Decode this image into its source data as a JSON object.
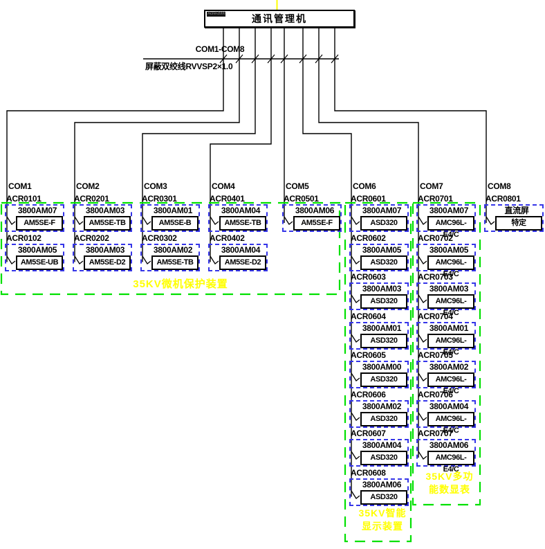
{
  "controller": {
    "tag": "Acrel-2000",
    "title": "通讯管理机"
  },
  "bus": {
    "ports_label": "COM1-COM8",
    "cable_label": "屏蔽双绞线RVVSP2×1.0"
  },
  "columns": [
    {
      "com": "COM1",
      "devices": [
        {
          "address": "ACR0101",
          "code": "3800AM07",
          "model": "AM5SE-F"
        },
        {
          "address": "ACR0102",
          "code": "3800AM05",
          "model": "AM5SE-UB"
        }
      ]
    },
    {
      "com": "COM2",
      "devices": [
        {
          "address": "ACR0201",
          "code": "3800AM03",
          "model": "AM5SE-TB"
        },
        {
          "address": "ACR0202",
          "code": "3800AM03",
          "model": "AM5SE-D2"
        }
      ]
    },
    {
      "com": "COM3",
      "devices": [
        {
          "address": "ACR0301",
          "code": "3800AM01",
          "model": "AM5SE-B"
        },
        {
          "address": "ACR0302",
          "code": "3800AM02",
          "model": "AM5SE-TB"
        }
      ]
    },
    {
      "com": "COM4",
      "devices": [
        {
          "address": "ACR0401",
          "code": "3800AM04",
          "model": "AM5SE-TB"
        },
        {
          "address": "ACR0402",
          "code": "3800AM04",
          "model": "AM5SE-D2"
        }
      ]
    },
    {
      "com": "COM5",
      "devices": [
        {
          "address": "ACR0501",
          "code": "3800AM06",
          "model": "AM5SE-F"
        }
      ]
    },
    {
      "com": "COM6",
      "devices": [
        {
          "address": "ACR0601",
          "code": "3800AM07",
          "model": "ASD320"
        },
        {
          "address": "ACR0602",
          "code": "3800AM05",
          "model": "ASD320"
        },
        {
          "address": "ACR0603",
          "code": "3800AM03",
          "model": "ASD320"
        },
        {
          "address": "ACR0604",
          "code": "3800AM01",
          "model": "ASD320"
        },
        {
          "address": "ACR0605",
          "code": "3800AM00",
          "model": "ASD320"
        },
        {
          "address": "ACR0606",
          "code": "3800AM02",
          "model": "ASD320"
        },
        {
          "address": "ACR0607",
          "code": "3800AM04",
          "model": "ASD320"
        },
        {
          "address": "ACR0608",
          "code": "3800AM06",
          "model": "ASD320"
        }
      ]
    },
    {
      "com": "COM7",
      "devices": [
        {
          "address": "ACR0701",
          "code": "3800AM07",
          "model": "AMC96L-E4/C"
        },
        {
          "address": "ACR0702",
          "code": "3800AM05",
          "model": "AMC96L-E4/C"
        },
        {
          "address": "ACR0703",
          "code": "3800AM03",
          "model": "AMC96L-E4/C"
        },
        {
          "address": "ACR0704",
          "code": "3800AM01",
          "model": "AMC96L-E4/C"
        },
        {
          "address": "ACR0705",
          "code": "3800AM02",
          "model": "AMC96L-E4/C"
        },
        {
          "address": "ACR0706",
          "code": "3800AM04",
          "model": "AMC96L-E4/C"
        },
        {
          "address": "ACR0707",
          "code": "3800AM06",
          "model": "AMC96L-E4/C"
        }
      ]
    },
    {
      "com": "COM8",
      "devices": [
        {
          "address": "ACR0801",
          "code": "直流屏",
          "model": "特定"
        }
      ]
    }
  ],
  "groups": [
    {
      "lines": [
        "35KV微机保护装置"
      ]
    },
    {
      "lines": [
        "35KV智能",
        "显示装置"
      ]
    },
    {
      "lines": [
        "35KV多功",
        "能数显表"
      ]
    }
  ],
  "colors": {
    "line": "#000000",
    "group_dash": "#00e000",
    "device_dash": "#3535e8",
    "highlight": "#ffff00"
  }
}
